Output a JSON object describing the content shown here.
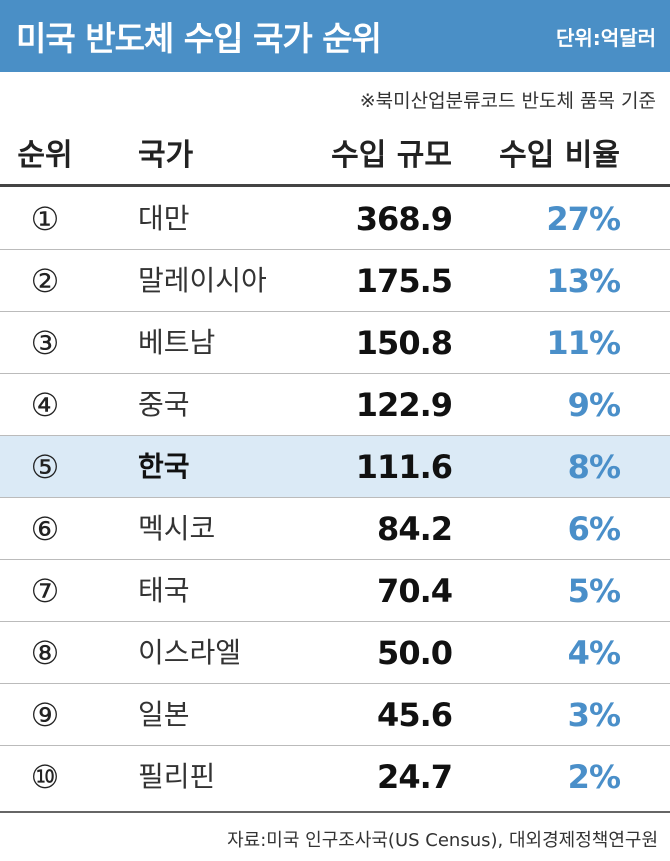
{
  "header": {
    "title": "미국 반도체 수입 국가 순위",
    "unit": "단위:억달러"
  },
  "note": "※북미산업분류코드 반도체 품목 기준",
  "table": {
    "columns": [
      "순위",
      "국가",
      "수입 규모",
      "수입 비율"
    ],
    "rows": [
      [
        "①",
        "대만",
        "368.9",
        "27%"
      ],
      [
        "②",
        "말레이시아",
        "175.5",
        "13%"
      ],
      [
        "③",
        "베트남",
        "150.8",
        "11%"
      ],
      [
        "④",
        "중국",
        "122.9",
        "9%"
      ],
      [
        "⑤",
        "한국",
        "111.6",
        "8%"
      ],
      [
        "⑥",
        "멕시코",
        "84.2",
        "6%"
      ],
      [
        "⑦",
        "태국",
        "70.4",
        "5%"
      ],
      [
        "⑧",
        "이스라엘",
        "50.0",
        "4%"
      ],
      [
        "⑨",
        "일본",
        "45.6",
        "3%"
      ],
      [
        "⑩",
        "필리핀",
        "24.7",
        "2%"
      ]
    ]
  },
  "source": "자료:미국 인구조사국(US Census), 대외경제정책연구원"
}
